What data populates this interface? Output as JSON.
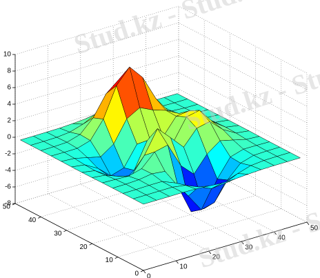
{
  "chart_data": {
    "type": "surface",
    "x": [
      0,
      4,
      8,
      12,
      16,
      20,
      24,
      28,
      32,
      36,
      40,
      44,
      48
    ],
    "y": [
      0,
      4,
      8,
      12,
      16,
      20,
      24,
      28,
      32,
      36,
      40,
      44,
      48
    ],
    "z": [
      [
        0,
        0,
        0,
        0.01,
        -0.03,
        -0.14,
        -0.25,
        -0.22,
        -0.11,
        -0.03,
        0,
        0,
        0
      ],
      [
        0,
        0,
        0.01,
        0.01,
        -0.23,
        -0.9,
        -1.55,
        -1.39,
        -0.68,
        -0.18,
        -0.03,
        0,
        0
      ],
      [
        0,
        0.01,
        0.05,
        0.05,
        -0.59,
        -2.64,
        -4.76,
        -4.35,
        -2.1,
        -0.53,
        -0.06,
        0,
        0
      ],
      [
        0,
        0.01,
        0.08,
        0.33,
        0.16,
        -2.16,
        -5.65,
        -5.74,
        -2.63,
        -0.44,
        0.04,
        0.03,
        0
      ],
      [
        -0.01,
        -0.06,
        -0.13,
        0.3,
        1.86,
        2.23,
        -0.73,
        -2.22,
        -0.27,
        0.88,
        0.5,
        0.11,
        0.01
      ],
      [
        -0.03,
        -0.2,
        -0.8,
        -1.21,
        0.8,
        3.56,
        2,
        0.39,
        2.2,
        2.55,
        1.12,
        0.23,
        0.03
      ],
      [
        -0.04,
        -0.3,
        -1.33,
        -2.77,
        -1.65,
        1.48,
        0.98,
        0.38,
        2.93,
        3.26,
        1.41,
        0.29,
        0.03
      ],
      [
        -0.03,
        -0.24,
        -1.12,
        -2.49,
        -2,
        0.39,
        0.46,
        0.37,
        2.37,
        2.55,
        1.09,
        0.23,
        0.03
      ],
      [
        -0.01,
        -0.11,
        -0.48,
        -0.86,
        0.23,
        2.8,
        3.69,
        2.94,
        2.43,
        1.58,
        0.58,
        0.11,
        0.01
      ],
      [
        0,
        -0.02,
        -0.01,
        0.47,
        2.59,
        6.16,
        7.96,
        6.23,
        3.24,
        1.18,
        0.29,
        0.05,
        0
      ],
      [
        0,
        0.01,
        0.08,
        0.55,
        2.1,
        4.56,
        5.86,
        4.57,
        2.21,
        0.67,
        0.13,
        0.02,
        0
      ],
      [
        0,
        0,
        0.03,
        0.19,
        0.68,
        1.45,
        1.86,
        1.45,
        0.69,
        0.2,
        0.04,
        0,
        0
      ],
      [
        0,
        0,
        0.01,
        0.03,
        0.11,
        0.23,
        0.3,
        0.23,
        0.11,
        0.03,
        0.01,
        0,
        0
      ]
    ],
    "xlim": [
      0,
      50
    ],
    "ylim": [
      0,
      50
    ],
    "zlim": [
      -8,
      10
    ],
    "xticks": [
      0,
      10,
      20,
      30,
      40,
      50
    ],
    "yticks": [
      0,
      10,
      20,
      30,
      40,
      50
    ],
    "zticks": [
      -8,
      -6,
      -4,
      -2,
      0,
      2,
      4,
      6,
      8,
      10
    ],
    "grid": true,
    "colormap": "jet",
    "watermark": "Stud.kz - Stud.kz"
  }
}
